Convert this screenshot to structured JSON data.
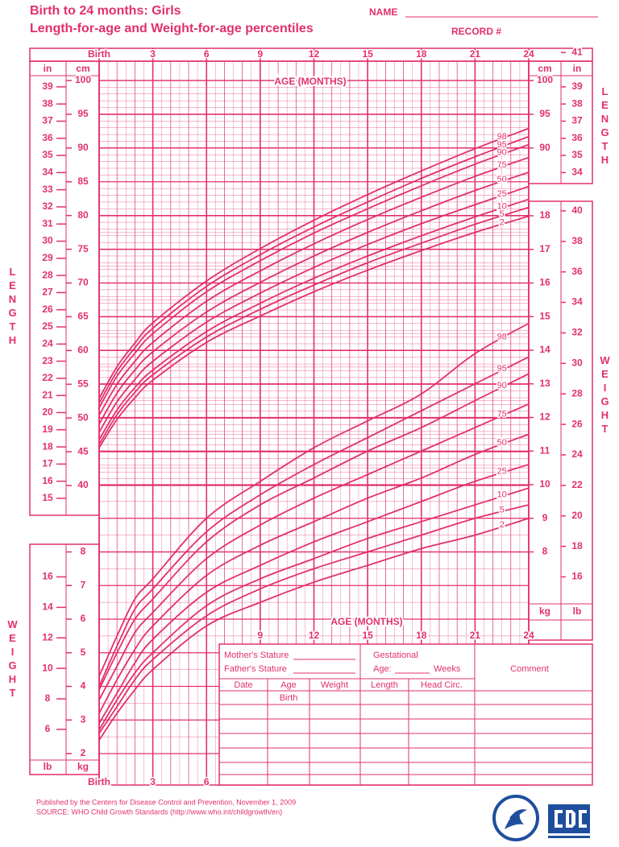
{
  "header": {
    "title": "Birth to 24 months: Girls",
    "subtitle": "Length-for-age and Weight-for-age percentiles",
    "name": "NAME",
    "record": "RECORD #"
  },
  "chart_data": [
    {
      "type": "line",
      "x_label": "AGE (MONTHS)",
      "y_label": "LENGTH",
      "y_unit": "cm",
      "y2_unit": "in",
      "color": "#e2306a",
      "x": [
        0,
        1,
        2,
        3,
        6,
        9,
        12,
        15,
        18,
        21,
        24
      ],
      "xlim": [
        0,
        24
      ],
      "xticks": [
        {
          "value": 0,
          "label": "Birth"
        },
        3,
        6,
        9,
        12,
        15,
        18,
        21,
        24
      ],
      "ylim": [
        40,
        100
      ],
      "yticks": [
        40,
        45,
        50,
        55,
        60,
        65,
        70,
        75,
        80,
        85,
        90,
        95,
        100
      ],
      "yticks_right": [
        90,
        95,
        100
      ],
      "y2lim": [
        15.75,
        39.37
      ],
      "y2ticks": [
        15,
        16,
        17,
        18,
        19,
        20,
        21,
        22,
        23,
        24,
        25,
        26,
        27,
        28,
        29,
        30,
        31,
        32,
        33,
        34,
        35,
        36,
        37,
        38,
        39
      ],
      "y2ticks_right": [
        34,
        35,
        36,
        37,
        38,
        39,
        41
      ],
      "series": [
        {
          "name": "2",
          "values": [
            45.6,
            49.8,
            53.0,
            55.6,
            61.2,
            65.1,
            68.7,
            71.9,
            74.8,
            77.5,
            79.9
          ]
        },
        {
          "name": "5",
          "values": [
            46.1,
            50.5,
            53.8,
            56.4,
            62.0,
            66.1,
            69.7,
            73.0,
            75.9,
            78.7,
            81.2
          ]
        },
        {
          "name": "10",
          "values": [
            46.8,
            51.2,
            54.5,
            57.1,
            62.8,
            67.0,
            70.7,
            74.0,
            77.0,
            79.8,
            82.4
          ]
        },
        {
          "name": "25",
          "values": [
            47.9,
            52.4,
            55.7,
            58.4,
            64.2,
            68.5,
            72.3,
            75.7,
            78.8,
            81.6,
            84.3
          ]
        },
        {
          "name": "50",
          "values": [
            49.1,
            53.7,
            57.1,
            59.8,
            65.7,
            70.1,
            74.0,
            77.5,
            80.7,
            83.7,
            86.4
          ]
        },
        {
          "name": "75",
          "values": [
            50.4,
            55.0,
            58.4,
            61.2,
            67.3,
            71.8,
            75.8,
            79.4,
            82.7,
            85.8,
            88.6
          ]
        },
        {
          "name": "90",
          "values": [
            51.5,
            56.2,
            59.6,
            62.5,
            68.7,
            73.3,
            77.4,
            81.0,
            84.4,
            87.6,
            90.5
          ]
        },
        {
          "name": "95",
          "values": [
            52.2,
            56.9,
            60.4,
            63.3,
            69.5,
            74.2,
            78.3,
            82.0,
            85.5,
            88.7,
            91.7
          ]
        },
        {
          "name": "98",
          "values": [
            52.9,
            57.6,
            61.1,
            64.1,
            70.3,
            75.1,
            79.3,
            83.1,
            86.6,
            89.9,
            92.9
          ]
        }
      ]
    },
    {
      "type": "line",
      "x_label": "AGE (MONTHS)",
      "y_label": "WEIGHT",
      "y_unit": "kg",
      "y2_unit": "lb",
      "color": "#e2306a",
      "x": [
        0,
        1,
        2,
        3,
        6,
        9,
        12,
        15,
        18,
        21,
        24
      ],
      "xlim": [
        0,
        24
      ],
      "xticks": [
        {
          "value": 0,
          "label": "Birth"
        },
        3,
        6,
        9,
        12,
        15,
        18,
        21,
        24
      ],
      "ylim": [
        2,
        18
      ],
      "yticks": [
        2,
        3,
        4,
        5,
        6,
        7,
        8
      ],
      "yticks_right": [
        8,
        9,
        10,
        11,
        12,
        13,
        14,
        15,
        16,
        17,
        18
      ],
      "y2lim": [
        4.41,
        39.68
      ],
      "y2ticks": [
        6,
        8,
        10,
        12,
        14,
        16
      ],
      "y2ticks_right": [
        16,
        18,
        20,
        22,
        24,
        26,
        28,
        30,
        32,
        34,
        36,
        38,
        40
      ],
      "series": [
        {
          "name": "2",
          "values": [
            2.4,
            3.2,
            3.9,
            4.5,
            5.8,
            6.5,
            7.1,
            7.6,
            8.1,
            8.5,
            9.0
          ]
        },
        {
          "name": "5",
          "values": [
            2.6,
            3.4,
            4.2,
            4.8,
            6.1,
            6.9,
            7.5,
            8.0,
            8.5,
            9.0,
            9.4
          ]
        },
        {
          "name": "10",
          "values": [
            2.7,
            3.6,
            4.4,
            5.0,
            6.4,
            7.2,
            7.8,
            8.4,
            8.9,
            9.4,
            9.9
          ]
        },
        {
          "name": "25",
          "values": [
            2.9,
            3.8,
            4.7,
            5.4,
            6.8,
            7.6,
            8.3,
            8.9,
            9.5,
            10.1,
            10.6
          ]
        },
        {
          "name": "50",
          "values": [
            3.2,
            4.2,
            5.1,
            5.8,
            7.3,
            8.2,
            8.9,
            9.6,
            10.2,
            10.9,
            11.5
          ]
        },
        {
          "name": "75",
          "values": [
            3.6,
            4.6,
            5.6,
            6.2,
            7.8,
            8.8,
            9.6,
            10.3,
            11.0,
            11.7,
            12.4
          ]
        },
        {
          "name": "90",
          "values": [
            3.9,
            5.0,
            6.0,
            6.6,
            8.3,
            9.4,
            10.2,
            11.0,
            11.7,
            12.5,
            13.3
          ]
        },
        {
          "name": "95",
          "values": [
            4.0,
            5.2,
            6.3,
            6.9,
            8.6,
            9.7,
            10.6,
            11.4,
            12.2,
            13.0,
            13.8
          ]
        },
        {
          "name": "98",
          "values": [
            4.3,
            5.5,
            6.6,
            7.2,
            9.0,
            10.1,
            11.1,
            11.9,
            12.7,
            13.9,
            14.8
          ]
        }
      ]
    }
  ],
  "form": {
    "mothers_stature": "Mother's Stature",
    "fathers_stature": "Father's Stature",
    "gestational": "Gestational",
    "age": "Age:",
    "weeks": "Weeks",
    "comment": "Comment",
    "columns": [
      "Date",
      "Age",
      "Weight",
      "Length",
      "Head Circ."
    ],
    "first_age": "Birth"
  },
  "footer": {
    "published": "Published by the Centers for Disease Control and Prevention, November 1, 2009",
    "source": "SOURCE:  WHO Child Growth Standards (http://www.who.int/childgrowth/en)"
  }
}
